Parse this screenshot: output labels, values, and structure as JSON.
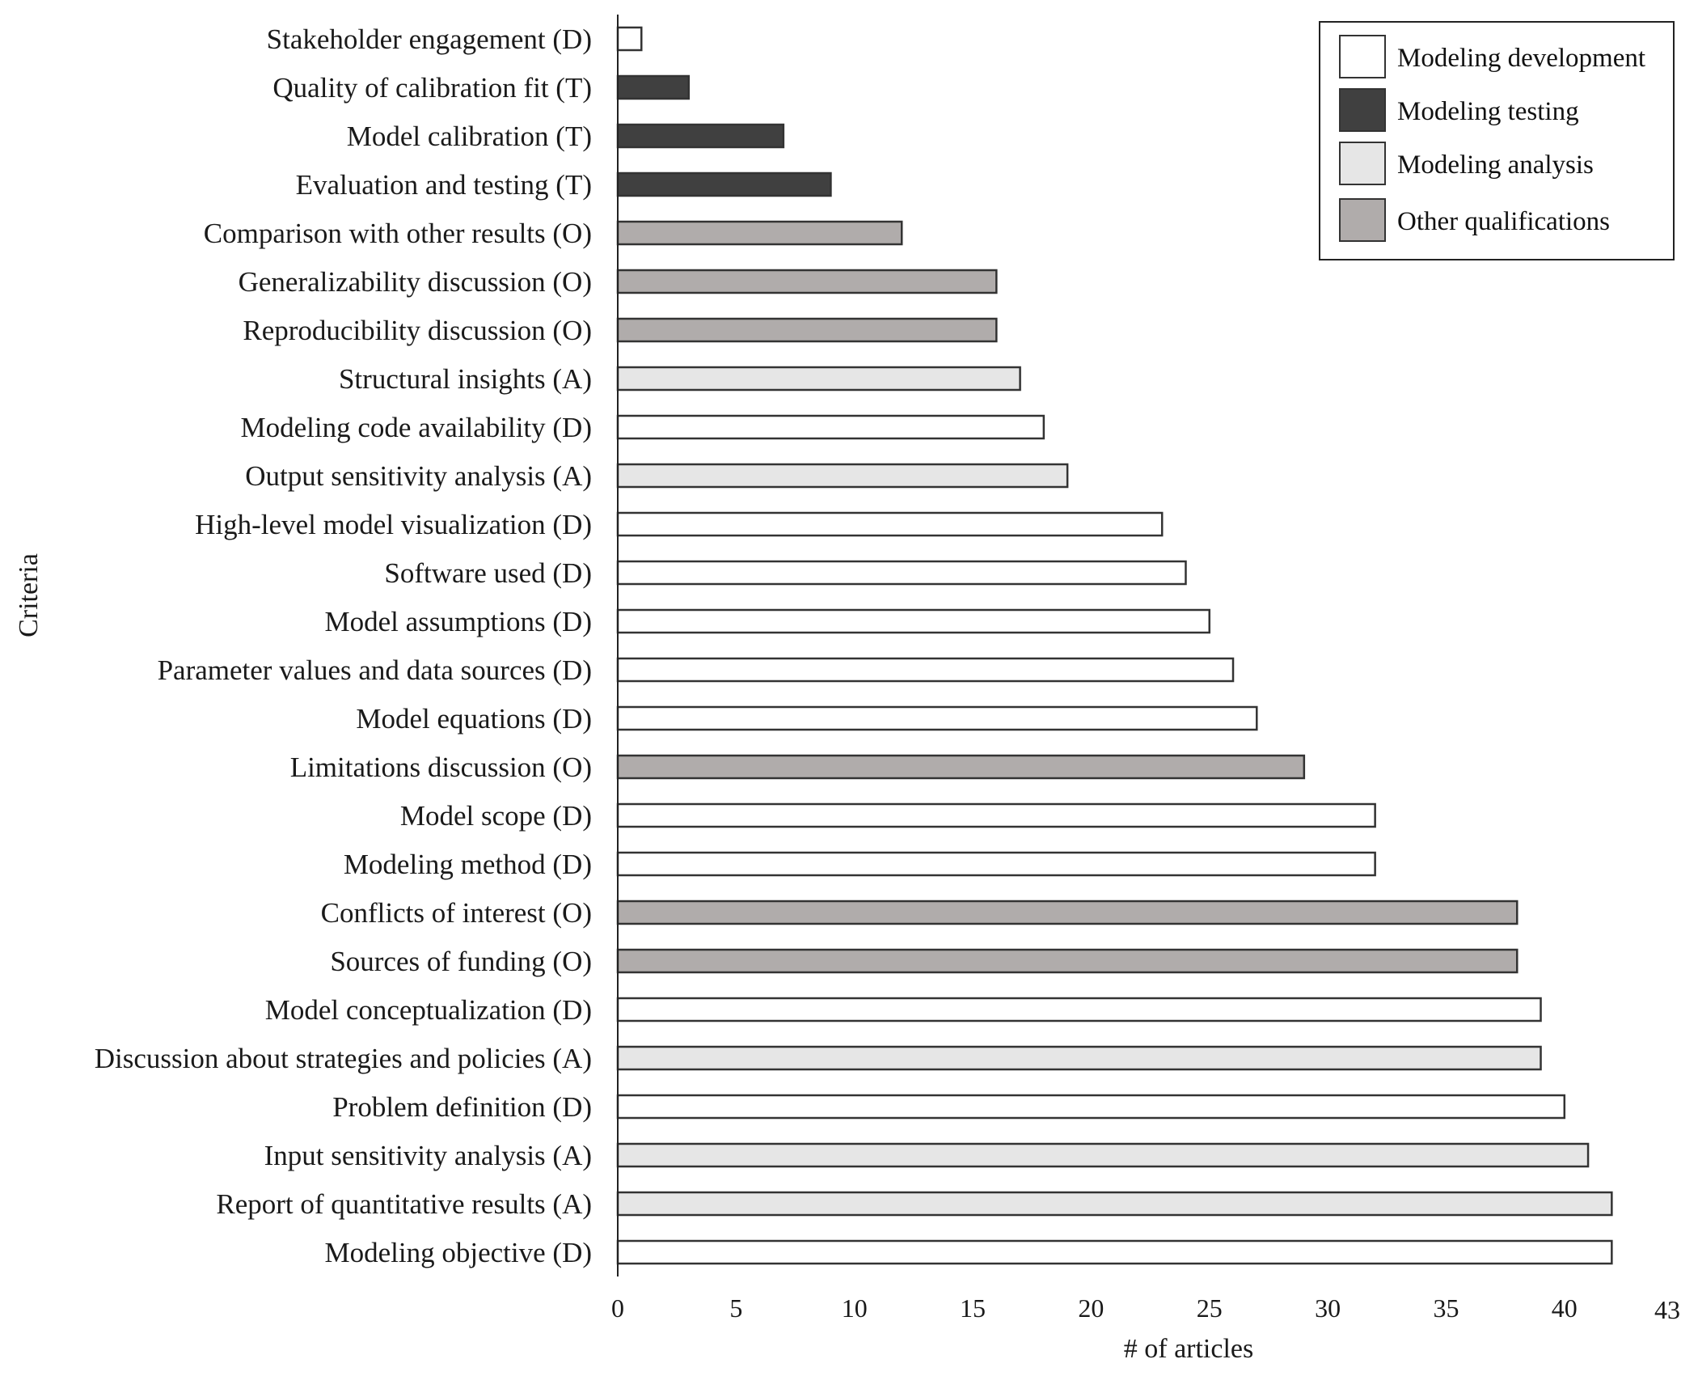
{
  "chart_data": {
    "type": "bar",
    "orientation": "horizontal",
    "title": "",
    "xlabel": "# of articles",
    "ylabel": "Criteria",
    "xlim": [
      0,
      43
    ],
    "xticks": [
      0,
      5,
      10,
      15,
      20,
      25,
      30,
      35,
      40
    ],
    "xtick_labels": [
      "0",
      "5",
      "10",
      "15",
      "20",
      "25",
      "30",
      "35",
      "40"
    ],
    "x_axis_max_label": "43",
    "grid": false,
    "legend_position": "top-right",
    "legend": [
      {
        "key": "D",
        "label": "Modeling development",
        "color": "#ffffff"
      },
      {
        "key": "T",
        "label": "Modeling testing",
        "color": "#404040"
      },
      {
        "key": "A",
        "label": "Modeling analysis",
        "color": "#e6e6e6"
      },
      {
        "key": "O",
        "label": "Other qualifications",
        "color": "#b0acab"
      }
    ],
    "bar_border_color": "#333333",
    "categories": [
      "Stakeholder engagement (D)",
      "Quality of calibration fit (T)",
      "Model calibration (T)",
      "Evaluation and testing (T)",
      "Comparison with other results (O)",
      "Generalizability discussion (O)",
      "Reproducibility discussion (O)",
      "Structural insights (A)",
      "Modeling code availability (D)",
      "Output sensitivity analysis (A)",
      "High-level model visualization (D)",
      "Software used (D)",
      "Model assumptions (D)",
      "Parameter values and data sources (D)",
      "Model equations (D)",
      "Limitations discussion (O)",
      "Model scope (D)",
      "Modeling method (D)",
      "Conflicts of interest (O)",
      "Sources of funding (O)",
      "Model conceptualization (D)",
      "Discussion about strategies and policies (A)",
      "Problem definition (D)",
      "Input sensitivity analysis (A)",
      "Report of quantitative results (A)",
      "Modeling objective (D)"
    ],
    "values": [
      1,
      3,
      7,
      9,
      12,
      16,
      16,
      17,
      18,
      19,
      23,
      24,
      25,
      26,
      27,
      29,
      32,
      32,
      38,
      38,
      39,
      39,
      40,
      41,
      42,
      42
    ],
    "groups": [
      "D",
      "T",
      "T",
      "T",
      "O",
      "O",
      "O",
      "A",
      "D",
      "A",
      "D",
      "D",
      "D",
      "D",
      "D",
      "O",
      "D",
      "D",
      "O",
      "O",
      "D",
      "A",
      "D",
      "A",
      "A",
      "D"
    ]
  }
}
